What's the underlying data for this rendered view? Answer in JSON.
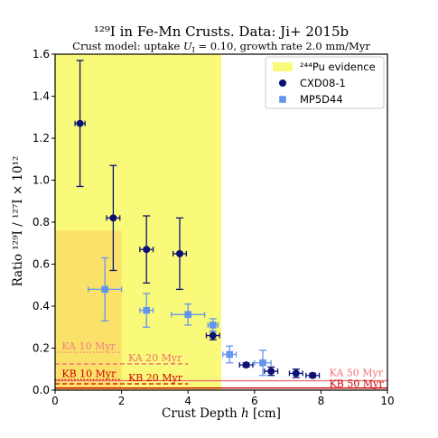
{
  "chart_data": {
    "type": "scatter",
    "title": "¹²⁹I in Fe-Mn Crusts. Data: Ji+ 2015b",
    "subtitle_prefix": "Crust model: uptake ",
    "subtitle_var": "U",
    "subtitle_sub": "I",
    "subtitle_suffix": " = 0.10, growth rate 2.0 mm/Myr",
    "xlabel_prefix": "Crust Depth ",
    "xlabel_var": "h",
    "xlabel_suffix": " [cm]",
    "ylabel": "Ratio ¹²⁹I / ¹²⁷I × 10¹²",
    "xlim": [
      0,
      10
    ],
    "ylim": [
      0,
      1.6
    ],
    "xticks": [
      0,
      2,
      4,
      6,
      8,
      10
    ],
    "yticks": [
      0.0,
      0.2,
      0.4,
      0.6,
      0.8,
      1.0,
      1.2,
      1.4,
      1.6
    ],
    "grid": false,
    "legend_position": "top-right",
    "legend": [
      {
        "label": "²⁴⁴Pu evidence",
        "kind": "patch",
        "color": "#fafa7a"
      },
      {
        "label": "CXD08-1",
        "kind": "circle",
        "color": "#0a1172"
      },
      {
        "label": "MP5D44",
        "kind": "square",
        "color": "#6495ed"
      }
    ],
    "shaded_regions": [
      {
        "name": "pu-evidence",
        "x": [
          0,
          5
        ],
        "y": [
          0,
          1.6
        ],
        "color": "#fafa7a"
      },
      {
        "name": "pu-evidence-inner",
        "x": [
          0,
          2
        ],
        "y": [
          0,
          0.76
        ],
        "color": "#fae16a"
      }
    ],
    "series": [
      {
        "name": "CXD08-1",
        "marker": "circle",
        "color": "#0a1172",
        "points": [
          {
            "x": 0.75,
            "y": 1.27,
            "ylo": 0.97,
            "yhi": 1.57,
            "xerr": 0.15
          },
          {
            "x": 1.75,
            "y": 0.82,
            "ylo": 0.57,
            "yhi": 1.07,
            "xerr": 0.2
          },
          {
            "x": 2.75,
            "y": 0.67,
            "ylo": 0.51,
            "yhi": 0.83,
            "xerr": 0.2
          },
          {
            "x": 3.75,
            "y": 0.65,
            "ylo": 0.48,
            "yhi": 0.82,
            "xerr": 0.2
          },
          {
            "x": 4.75,
            "y": 0.26,
            "ylo": 0.24,
            "yhi": 0.28,
            "xerr": 0.2
          },
          {
            "x": 5.75,
            "y": 0.12,
            "ylo": 0.11,
            "yhi": 0.13,
            "xerr": 0.2
          },
          {
            "x": 6.5,
            "y": 0.09,
            "ylo": 0.07,
            "yhi": 0.11,
            "xerr": 0.2
          },
          {
            "x": 7.25,
            "y": 0.08,
            "ylo": 0.06,
            "yhi": 0.1,
            "xerr": 0.2
          },
          {
            "x": 7.75,
            "y": 0.07,
            "ylo": 0.06,
            "yhi": 0.08,
            "xerr": 0.2
          }
        ]
      },
      {
        "name": "MP5D44",
        "marker": "square",
        "color": "#6495ed",
        "points": [
          {
            "x": 1.5,
            "y": 0.48,
            "ylo": 0.33,
            "yhi": 0.63,
            "xerr": 0.5
          },
          {
            "x": 2.75,
            "y": 0.38,
            "ylo": 0.3,
            "yhi": 0.46,
            "xerr": 0.2
          },
          {
            "x": 4.0,
            "y": 0.36,
            "ylo": 0.31,
            "yhi": 0.41,
            "xerr": 0.5
          },
          {
            "x": 4.75,
            "y": 0.31,
            "ylo": 0.28,
            "yhi": 0.34,
            "xerr": 0.15
          },
          {
            "x": 5.25,
            "y": 0.17,
            "ylo": 0.13,
            "yhi": 0.21,
            "xerr": 0.2
          },
          {
            "x": 6.25,
            "y": 0.13,
            "ylo": 0.07,
            "yhi": 0.19,
            "xerr": 0.25
          }
        ]
      }
    ],
    "reference_lines": [
      {
        "label": "KA 10 Myr",
        "y": 0.18,
        "x": [
          0,
          2
        ],
        "style": "dotted",
        "color": "#f08080"
      },
      {
        "label": "KA 20 Myr",
        "y": 0.125,
        "x": [
          0,
          4
        ],
        "style": "dashed",
        "color": "#f07070"
      },
      {
        "label": "KA 50 Myr",
        "y": 0.045,
        "x": [
          0,
          10
        ],
        "style": "solid",
        "color": "#f07070"
      },
      {
        "label": "KB 10 Myr",
        "y": 0.05,
        "x": [
          0,
          2
        ],
        "style": "dotted",
        "color": "#cc0000"
      },
      {
        "label": "KB 20 Myr",
        "y": 0.03,
        "x": [
          0,
          4
        ],
        "style": "dashed",
        "color": "#cc0000"
      },
      {
        "label": "KB 50 Myr",
        "y": 0.01,
        "x": [
          0,
          10
        ],
        "style": "solid",
        "color": "#cc0000"
      }
    ]
  }
}
